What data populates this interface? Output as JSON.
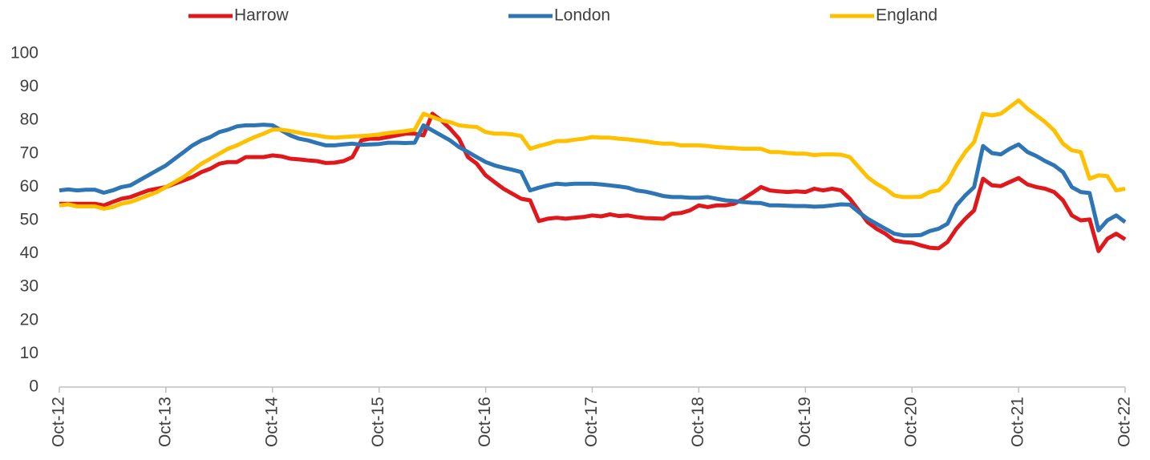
{
  "chart_data": {
    "type": "line",
    "categories": [
      "Oct-12",
      null,
      null,
      null,
      null,
      null,
      null,
      null,
      null,
      null,
      null,
      null,
      "Oct-13",
      null,
      null,
      null,
      null,
      null,
      null,
      null,
      null,
      null,
      null,
      null,
      "Oct-14",
      null,
      null,
      null,
      null,
      null,
      null,
      null,
      null,
      null,
      null,
      null,
      "Oct-15",
      null,
      null,
      null,
      null,
      null,
      null,
      null,
      null,
      null,
      null,
      null,
      "Oct-16",
      null,
      null,
      null,
      null,
      null,
      null,
      null,
      null,
      null,
      null,
      null,
      "Oct-17",
      null,
      null,
      null,
      null,
      null,
      null,
      null,
      null,
      null,
      null,
      null,
      "Oct-18",
      null,
      null,
      null,
      null,
      null,
      null,
      null,
      null,
      null,
      null,
      null,
      "Oct-19",
      null,
      null,
      null,
      null,
      null,
      null,
      null,
      null,
      null,
      null,
      null,
      "Oct-20",
      null,
      null,
      null,
      null,
      null,
      null,
      null,
      null,
      null,
      null,
      null,
      "Oct-21",
      null,
      null,
      null,
      null,
      null,
      null,
      null,
      null,
      null,
      null,
      null,
      "Oct-22"
    ],
    "series": [
      {
        "name": "Harrow",
        "color": "#e0181b",
        "values": [
          55,
          55,
          55,
          55,
          55,
          54.5,
          55.5,
          56.5,
          57,
          58,
          59,
          59.5,
          60,
          61,
          62,
          63,
          64.5,
          65.5,
          67,
          67.5,
          67.5,
          69,
          69,
          69,
          69.5,
          69.2,
          68.5,
          68.3,
          68,
          67.8,
          67.2,
          67.3,
          67.8,
          69,
          74,
          74.5,
          74.5,
          75,
          75.5,
          76,
          76,
          75.5,
          82,
          80,
          77.5,
          74.5,
          69,
          67,
          63.5,
          61.5,
          59.5,
          58,
          56.5,
          56,
          49.8,
          50.5,
          50.8,
          50.5,
          50.8,
          51,
          51.5,
          51.2,
          51.8,
          51.3,
          51.5,
          51,
          50.7,
          50.6,
          50.5,
          52,
          52.2,
          53,
          54.5,
          54,
          54.5,
          54.5,
          55,
          56.5,
          58.2,
          60,
          59,
          58.7,
          58.5,
          58.7,
          58.5,
          59.5,
          59,
          59.5,
          59,
          56.5,
          53,
          49.5,
          47.5,
          46,
          44,
          43.5,
          43.3,
          42.5,
          41.8,
          41.6,
          43.5,
          47.5,
          50.5,
          53,
          62.5,
          60.5,
          60.3,
          61.5,
          62.7,
          60.8,
          60,
          59.5,
          58.5,
          56,
          51.5,
          50,
          50.3,
          40.8,
          44.5,
          46,
          44.3
        ]
      },
      {
        "name": "London",
        "color": "#2e75b6",
        "values": [
          59,
          59.3,
          59,
          59.2,
          59.2,
          58.3,
          59,
          60,
          60.5,
          62,
          63.5,
          65,
          66.5,
          68.5,
          70.5,
          72.5,
          74,
          75,
          76.5,
          77.2,
          78.2,
          78.5,
          78.5,
          78.7,
          78.5,
          77,
          75.5,
          74.5,
          74,
          73.2,
          72.5,
          72.5,
          72.8,
          73,
          72.7,
          72.8,
          72.9,
          73.3,
          73.3,
          73.2,
          73.3,
          78.5,
          77,
          75.5,
          74,
          72,
          70.5,
          69,
          67.5,
          66.5,
          65.8,
          65.2,
          64.5,
          59,
          59.8,
          60.5,
          61,
          60.8,
          61,
          61,
          61,
          60.8,
          60.5,
          60.2,
          59.8,
          59,
          58.6,
          58,
          57.3,
          57,
          57,
          56.8,
          56.8,
          57,
          56.5,
          56,
          55.8,
          55.5,
          55.3,
          55.2,
          54.5,
          54.5,
          54.4,
          54.3,
          54.3,
          54.1,
          54.2,
          54.5,
          54.8,
          54.7,
          52.5,
          50.5,
          49,
          47.5,
          46,
          45.5,
          45.5,
          45.6,
          46.8,
          47.5,
          49,
          54.5,
          57.5,
          60,
          72.3,
          70.2,
          69.8,
          71.5,
          72.8,
          70.5,
          69.3,
          67.8,
          66.5,
          64.5,
          60,
          58.5,
          58.2,
          47,
          50,
          51.5,
          49.5
        ]
      },
      {
        "name": "England",
        "color": "#ffc000",
        "values": [
          54.5,
          54.8,
          54.2,
          54.2,
          54.2,
          53.5,
          54,
          55,
          55.5,
          56.5,
          57.5,
          58.5,
          60,
          61.5,
          63,
          65,
          67,
          68.5,
          70,
          71.5,
          72.5,
          73.8,
          75,
          76,
          77.2,
          77.2,
          76.8,
          76.3,
          75.8,
          75.5,
          75,
          74.8,
          75,
          75.2,
          75.3,
          75.5,
          75.8,
          76.2,
          76.5,
          76.8,
          77.2,
          82,
          81,
          80,
          79.5,
          78.5,
          78.2,
          78,
          76.5,
          76,
          76,
          75.8,
          75.3,
          71.5,
          72.3,
          73,
          73.8,
          73.8,
          74.2,
          74.5,
          75,
          74.8,
          74.8,
          74.5,
          74.3,
          74,
          73.7,
          73.3,
          73,
          73,
          72.5,
          72.5,
          72.5,
          72.3,
          72,
          71.8,
          71.7,
          71.5,
          71.5,
          71.5,
          70.5,
          70.5,
          70.2,
          70,
          70,
          69.6,
          69.8,
          69.8,
          69.7,
          69,
          66,
          63,
          61,
          59.5,
          57.5,
          57,
          57,
          57.1,
          58.5,
          59,
          61.5,
          66.5,
          70.5,
          73.5,
          82,
          81.5,
          82,
          84,
          86,
          83.5,
          81.5,
          79.5,
          77,
          73,
          71,
          70.5,
          62.5,
          63.5,
          63.3,
          59,
          59.5
        ]
      }
    ],
    "ylim": [
      0,
      100
    ],
    "yticks": [
      0,
      10,
      20,
      30,
      40,
      50,
      60,
      70,
      80,
      90,
      100
    ],
    "grid": false,
    "legend": "top"
  }
}
